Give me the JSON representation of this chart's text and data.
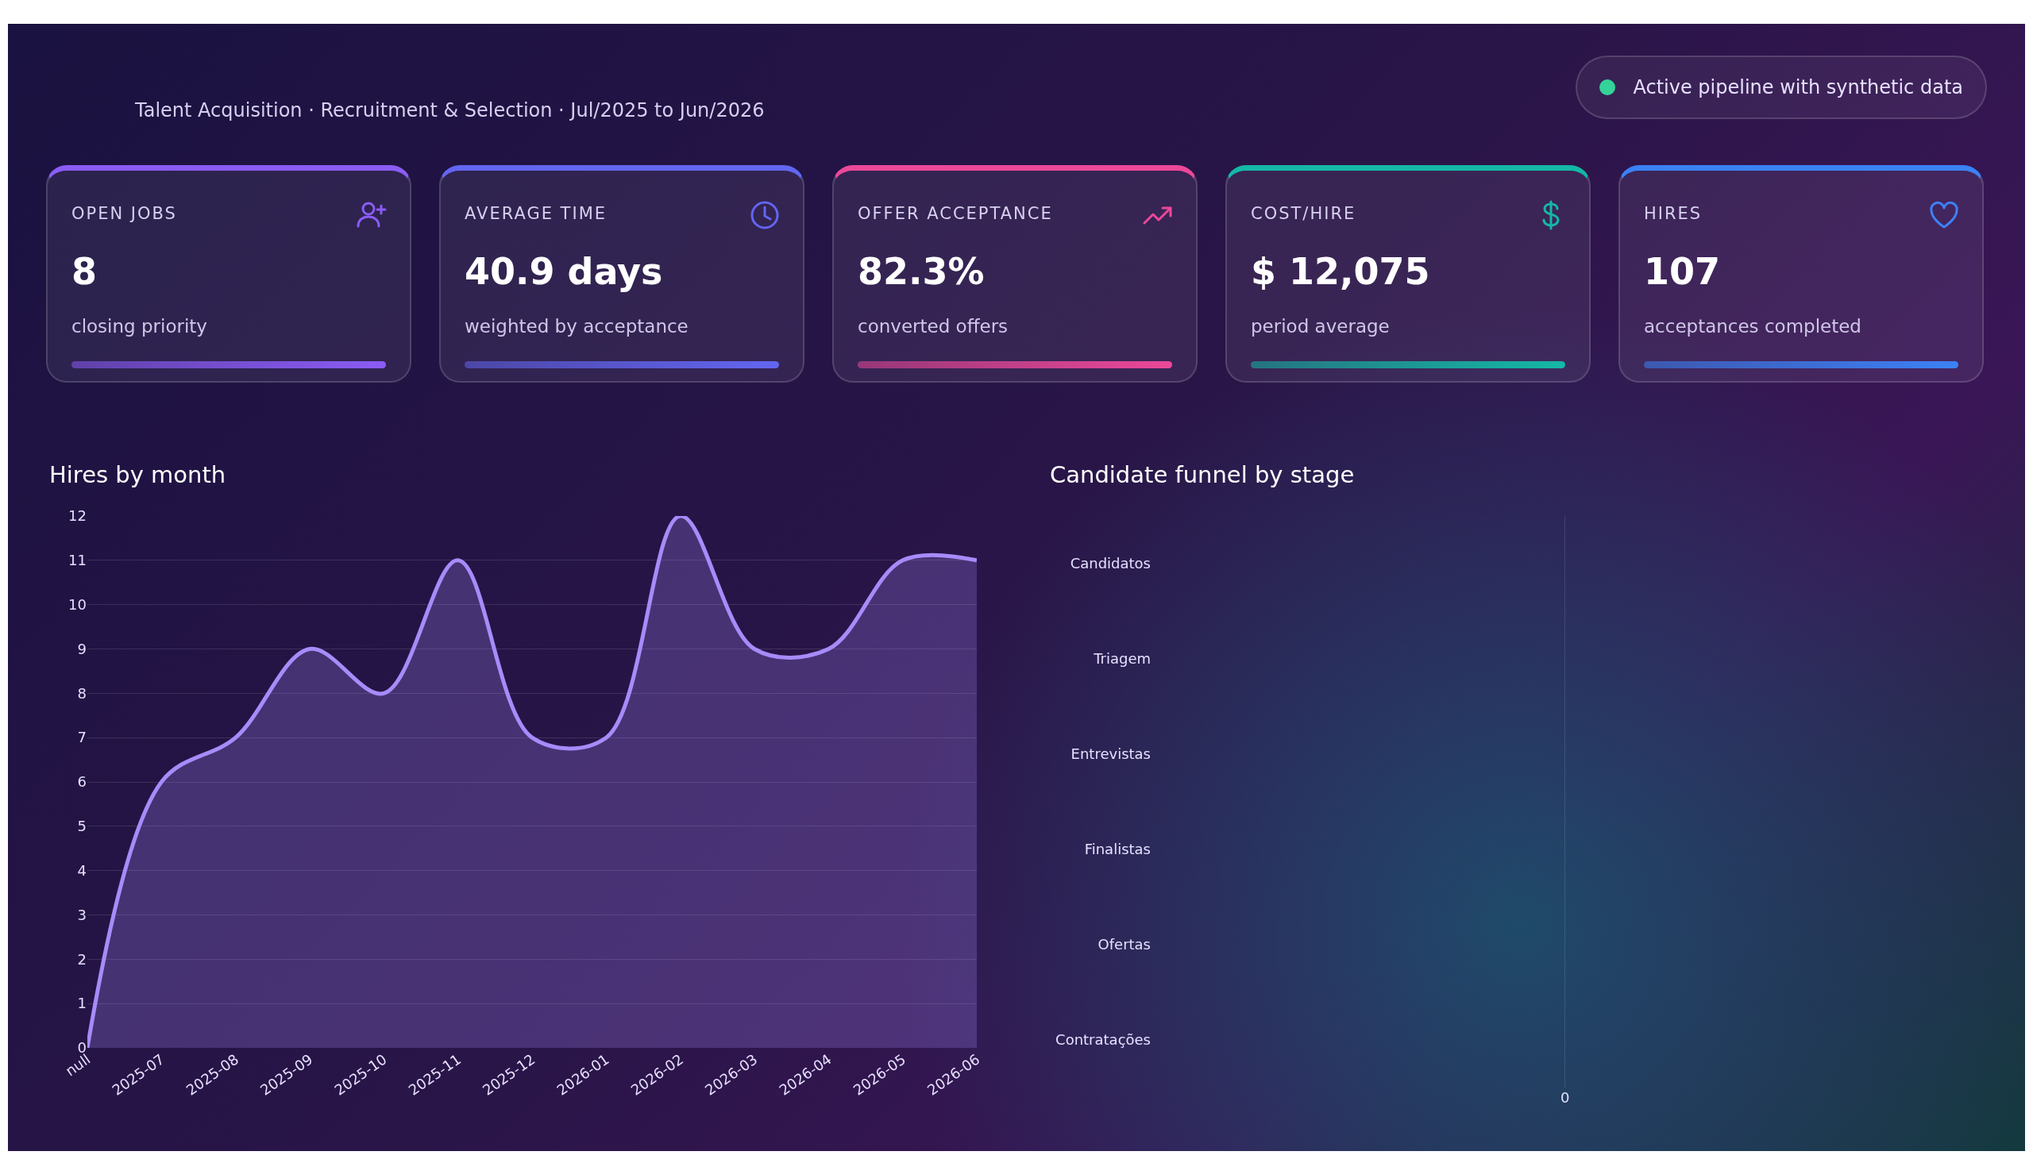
{
  "chart_data": [
    {
      "type": "other",
      "subtitle": "Talent Acquisition · Recruitment & Selection · Jul/2025 to Jun/2026",
      "annotations": [
        "Active pipeline with synthetic data"
      ]
    },
    {
      "type": "other",
      "title": "OPEN JOBS",
      "annotations": [
        "8"
      ],
      "subtitle": "closing priority",
      "color": "#8b5cf6"
    },
    {
      "type": "other",
      "title": "AVERAGE TIME",
      "annotations": [
        "40.9 days"
      ],
      "subtitle": "weighted by acceptance",
      "color": "#6366f1"
    },
    {
      "type": "other",
      "title": "OFFER ACCEPTANCE",
      "annotations": [
        "82.3%"
      ],
      "subtitle": "converted offers",
      "color": "#ec4899"
    },
    {
      "type": "other",
      "title": "COST/HIRE",
      "annotations": [
        "$ 12,075"
      ],
      "subtitle": "period average",
      "color": "#14b8a6"
    },
    {
      "type": "other",
      "title": "HIRES",
      "annotations": [
        "107"
      ],
      "subtitle": "acceptances completed",
      "color": "#3b82f6"
    },
    {
      "type": "area",
      "title": "Hires by month",
      "categories": [
        "null",
        "2025-07",
        "2025-08",
        "2025-09",
        "2025-10",
        "2025-11",
        "2025-12",
        "2026-01",
        "2026-02",
        "2026-03",
        "2026-04",
        "2026-05",
        "2026-06"
      ],
      "values": [
        0,
        6,
        7,
        9,
        8,
        11,
        7,
        7,
        12,
        9,
        9,
        11,
        11
      ],
      "color": "#a78bfa",
      "ylim": [
        0,
        12
      ],
      "yticks": [
        0,
        1,
        2,
        3,
        4,
        5,
        6,
        7,
        8,
        9,
        10,
        11,
        12
      ],
      "grid": "y"
    },
    {
      "type": "other",
      "title": "Candidate funnel by stage",
      "categories": [
        "Candidatos",
        "Triagem",
        "Entrevistas",
        "Finalistas",
        "Ofertas",
        "Contratações"
      ],
      "annotations": [
        "0"
      ]
    }
  ]
}
